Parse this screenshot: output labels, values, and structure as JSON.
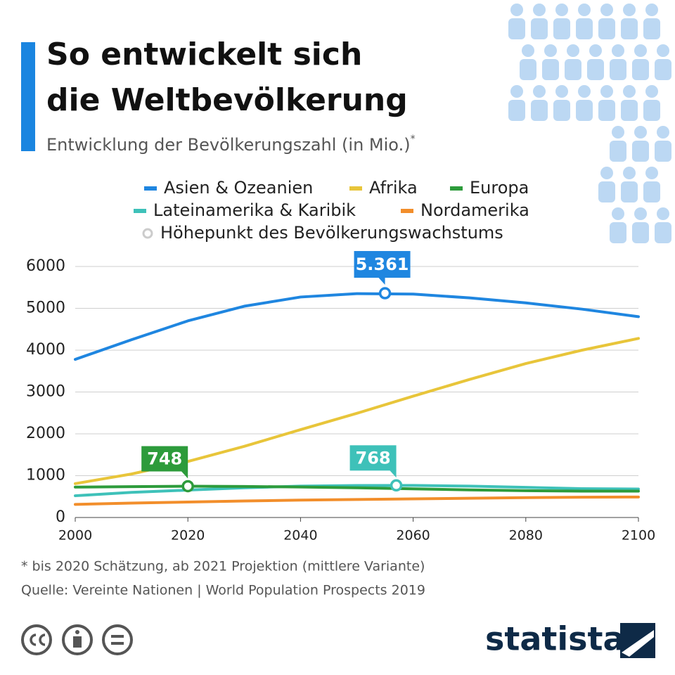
{
  "chart_data": {
    "type": "line",
    "title_lines": [
      "So entwickelt sich",
      "die Weltbevölkerung"
    ],
    "subtitle": "Entwicklung der Bevölkerungszahl (in Mio.)",
    "subtitle_marker": "*",
    "x": [
      2000,
      2010,
      2020,
      2030,
      2040,
      2050,
      2060,
      2070,
      2080,
      2090,
      2100
    ],
    "series": [
      {
        "name": "Asien & Ozeanien",
        "color": "#1f86e0",
        "values": [
          3780,
          4250,
          4700,
          5050,
          5270,
          5350,
          5340,
          5250,
          5130,
          4980,
          4800
        ]
      },
      {
        "name": "Afrika",
        "color": "#e8c53a",
        "values": [
          810,
          1040,
          1340,
          1700,
          2100,
          2490,
          2900,
          3300,
          3680,
          4000,
          4280
        ]
      },
      {
        "name": "Europa",
        "color": "#2d9b3b",
        "values": [
          727,
          737,
          748,
          741,
          730,
          710,
          685,
          660,
          640,
          630,
          630
        ]
      },
      {
        "name": "Lateinamerika & Karibik",
        "color": "#3ec1b9",
        "values": [
          520,
          600,
          655,
          710,
          750,
          765,
          766,
          750,
          720,
          690,
          680
        ]
      },
      {
        "name": "Nordamerika",
        "color": "#f28e2b",
        "values": [
          313,
          345,
          370,
          395,
          415,
          430,
          445,
          460,
          475,
          485,
          490
        ]
      }
    ],
    "peaks": {
      "name": "Höhepunkt des Bevölkerungswachstums",
      "x": [
        2055,
        2020,
        2057
      ],
      "values": [
        5361,
        748,
        768
      ],
      "value_labels": [
        "5.361",
        "748",
        "768"
      ],
      "colors": [
        "#1f86e0",
        "#2d9b3b",
        "#3ec1b9"
      ]
    },
    "xlim": [
      2000,
      2100
    ],
    "xticks": [
      2000,
      2020,
      2040,
      2060,
      2080,
      2100
    ],
    "ylim": [
      0,
      6000
    ],
    "yticks": [
      0,
      1000,
      2000,
      3000,
      4000,
      5000,
      6000
    ],
    "grid": true,
    "footnote": "* bis 2020 Schätzung, ab 2021 Projektion (mittlere Variante)",
    "source": "Quelle: Vereinte Nationen | World Population Prospects 2019",
    "logo": "statista"
  }
}
